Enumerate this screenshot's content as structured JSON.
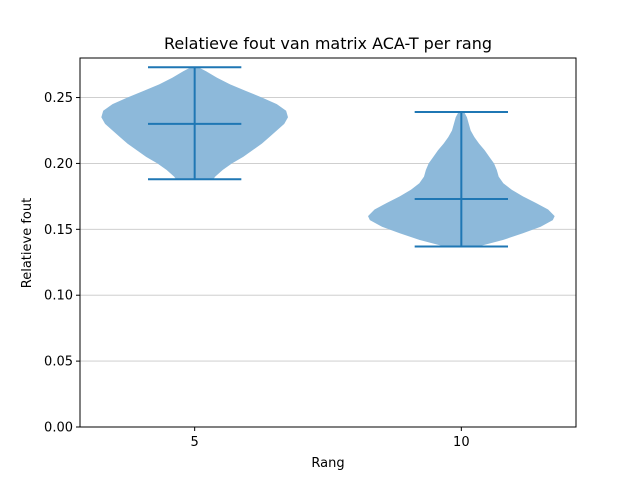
{
  "chart_data": {
    "type": "violin",
    "title": "Relatieve fout van matrix ACA-T per rang",
    "xlabel": "Rang",
    "ylabel": "Relatieve fout",
    "categories": [
      "5",
      "10"
    ],
    "ylim": [
      0.0,
      0.28
    ],
    "yticks": [
      0.0,
      0.05,
      0.1,
      0.15,
      0.2,
      0.25
    ],
    "ytick_labels": [
      "0.00",
      "0.05",
      "0.10",
      "0.15",
      "0.20",
      "0.25"
    ],
    "grid": "horizontal",
    "color": "#1f77b4",
    "fill_color": "#8db9da",
    "violins": [
      {
        "category": "5",
        "min": 0.188,
        "max": 0.273,
        "median": 0.23,
        "density": [
          [
            0.188,
            0.2
          ],
          [
            0.19,
            0.22
          ],
          [
            0.195,
            0.3
          ],
          [
            0.2,
            0.4
          ],
          [
            0.205,
            0.52
          ],
          [
            0.21,
            0.62
          ],
          [
            0.215,
            0.72
          ],
          [
            0.22,
            0.8
          ],
          [
            0.225,
            0.88
          ],
          [
            0.23,
            0.96
          ],
          [
            0.235,
            1.0
          ],
          [
            0.24,
            0.98
          ],
          [
            0.245,
            0.88
          ],
          [
            0.25,
            0.72
          ],
          [
            0.255,
            0.55
          ],
          [
            0.26,
            0.38
          ],
          [
            0.265,
            0.24
          ],
          [
            0.27,
            0.12
          ],
          [
            0.273,
            0.04
          ]
        ]
      },
      {
        "category": "10",
        "min": 0.137,
        "max": 0.239,
        "median": 0.173,
        "density": [
          [
            0.137,
            0.18
          ],
          [
            0.142,
            0.45
          ],
          [
            0.147,
            0.66
          ],
          [
            0.152,
            0.85
          ],
          [
            0.157,
            0.98
          ],
          [
            0.16,
            1.0
          ],
          [
            0.165,
            0.93
          ],
          [
            0.17,
            0.8
          ],
          [
            0.175,
            0.66
          ],
          [
            0.18,
            0.54
          ],
          [
            0.185,
            0.45
          ],
          [
            0.19,
            0.4
          ],
          [
            0.195,
            0.38
          ],
          [
            0.2,
            0.35
          ],
          [
            0.205,
            0.3
          ],
          [
            0.21,
            0.25
          ],
          [
            0.215,
            0.19
          ],
          [
            0.22,
            0.14
          ],
          [
            0.225,
            0.1
          ],
          [
            0.23,
            0.08
          ],
          [
            0.235,
            0.06
          ],
          [
            0.239,
            0.03
          ]
        ]
      }
    ]
  }
}
